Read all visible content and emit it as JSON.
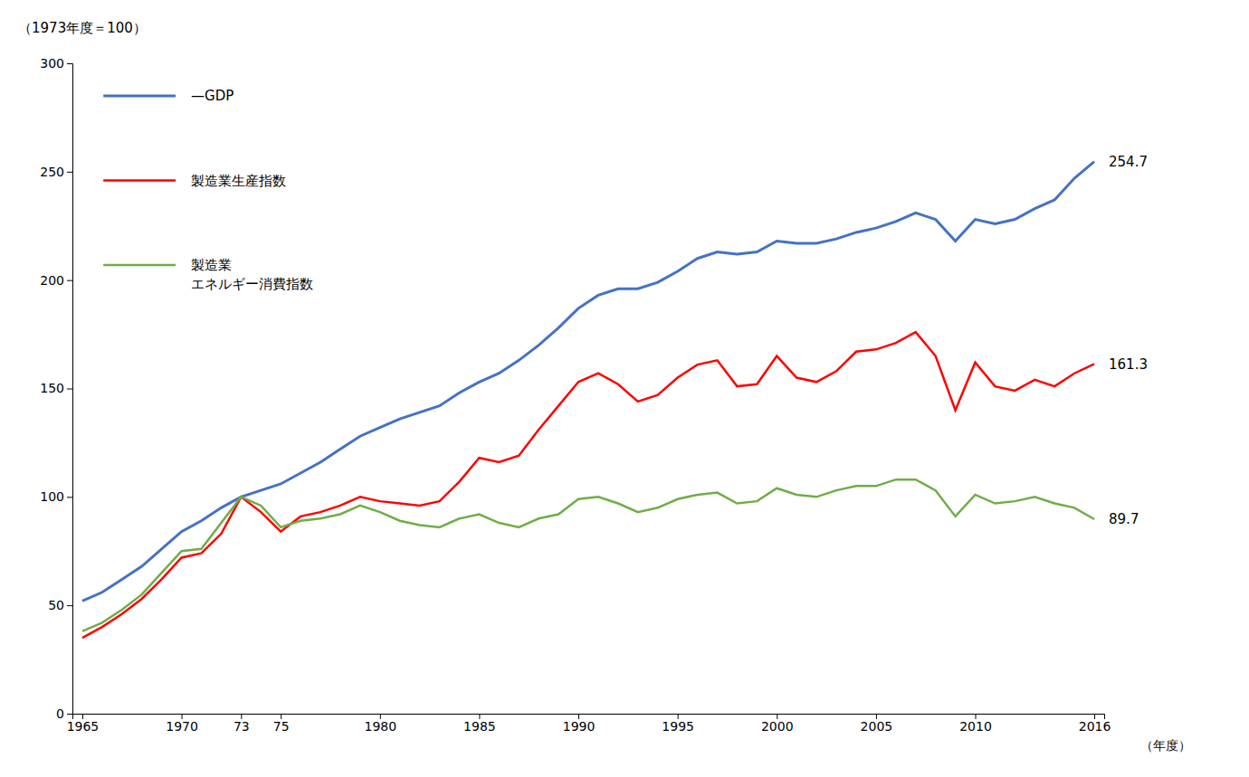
{
  "chart_data": {
    "type": "line",
    "x": [
      1965,
      1966,
      1967,
      1968,
      1969,
      1970,
      1971,
      1972,
      1973,
      1974,
      1975,
      1976,
      1977,
      1978,
      1979,
      1980,
      1981,
      1982,
      1983,
      1984,
      1985,
      1986,
      1987,
      1988,
      1989,
      1990,
      1991,
      1992,
      1993,
      1994,
      1995,
      1996,
      1997,
      1998,
      1999,
      2000,
      2001,
      2002,
      2003,
      2004,
      2005,
      2006,
      2007,
      2008,
      2009,
      2010,
      2011,
      2012,
      2013,
      2014,
      2015,
      2016
    ],
    "series": [
      {
        "name": "—GDP",
        "color": "#4472C4",
        "values": [
          52,
          56,
          62,
          68,
          76,
          84,
          89,
          95,
          100,
          103,
          106,
          111,
          116,
          122,
          128,
          132,
          136,
          139,
          142,
          148,
          153,
          157,
          163,
          170,
          178,
          187,
          193,
          196,
          196,
          199,
          204,
          210,
          213,
          212,
          213,
          218,
          217,
          217,
          219,
          222,
          224,
          227,
          231,
          228,
          218,
          228,
          226,
          228,
          233,
          237,
          247,
          254.7
        ]
      },
      {
        "name": "製造業生産指数",
        "color": "#FF0000",
        "values": [
          35,
          40,
          46,
          53,
          62,
          72,
          74,
          83,
          100,
          93,
          84,
          91,
          93,
          96,
          100,
          98,
          97,
          96,
          98,
          107,
          118,
          116,
          119,
          131,
          142,
          153,
          157,
          152,
          144,
          147,
          155,
          161,
          163,
          151,
          152,
          165,
          155,
          153,
          158,
          167,
          168,
          171,
          176,
          165,
          140,
          162,
          151,
          149,
          154,
          151,
          157,
          161.3
        ]
      },
      {
        "name": "製造業\nエネルギー消費指数",
        "color": "#70AD47",
        "values": [
          38,
          42,
          48,
          55,
          65,
          75,
          76,
          88,
          100,
          96,
          86,
          89,
          90,
          92,
          96,
          93,
          89,
          87,
          86,
          90,
          92,
          88,
          86,
          90,
          92,
          99,
          100,
          97,
          93,
          95,
          99,
          101,
          102,
          97,
          98,
          104,
          101,
          100,
          103,
          105,
          105,
          108,
          108,
          103,
          91,
          101,
          97,
          98,
          100,
          97,
          95,
          89.7
        ]
      }
    ],
    "y_label": "（1973年度＝100）",
    "x_label": "（年度）",
    "annotations": [
      {
        "text": "254.7",
        "x": 2016,
        "y": 254.7
      },
      {
        "text": "161.3",
        "x": 2016,
        "y": 161.3
      },
      {
        "text": "89.7",
        "x": 2016,
        "y": 89.7
      }
    ],
    "xlim": [
      1964.5,
      2016.5
    ],
    "xticks": [
      1965,
      1970,
      {
        "value": 1973,
        "label": "73"
      },
      {
        "value": 1975,
        "label": "75"
      },
      1980,
      1985,
      1990,
      1995,
      2000,
      2005,
      2010,
      2016
    ],
    "ylim": [
      0,
      300
    ],
    "yticks": [
      0,
      50,
      100,
      150,
      200,
      250,
      300
    ],
    "grid": false,
    "legend": "upper left"
  }
}
